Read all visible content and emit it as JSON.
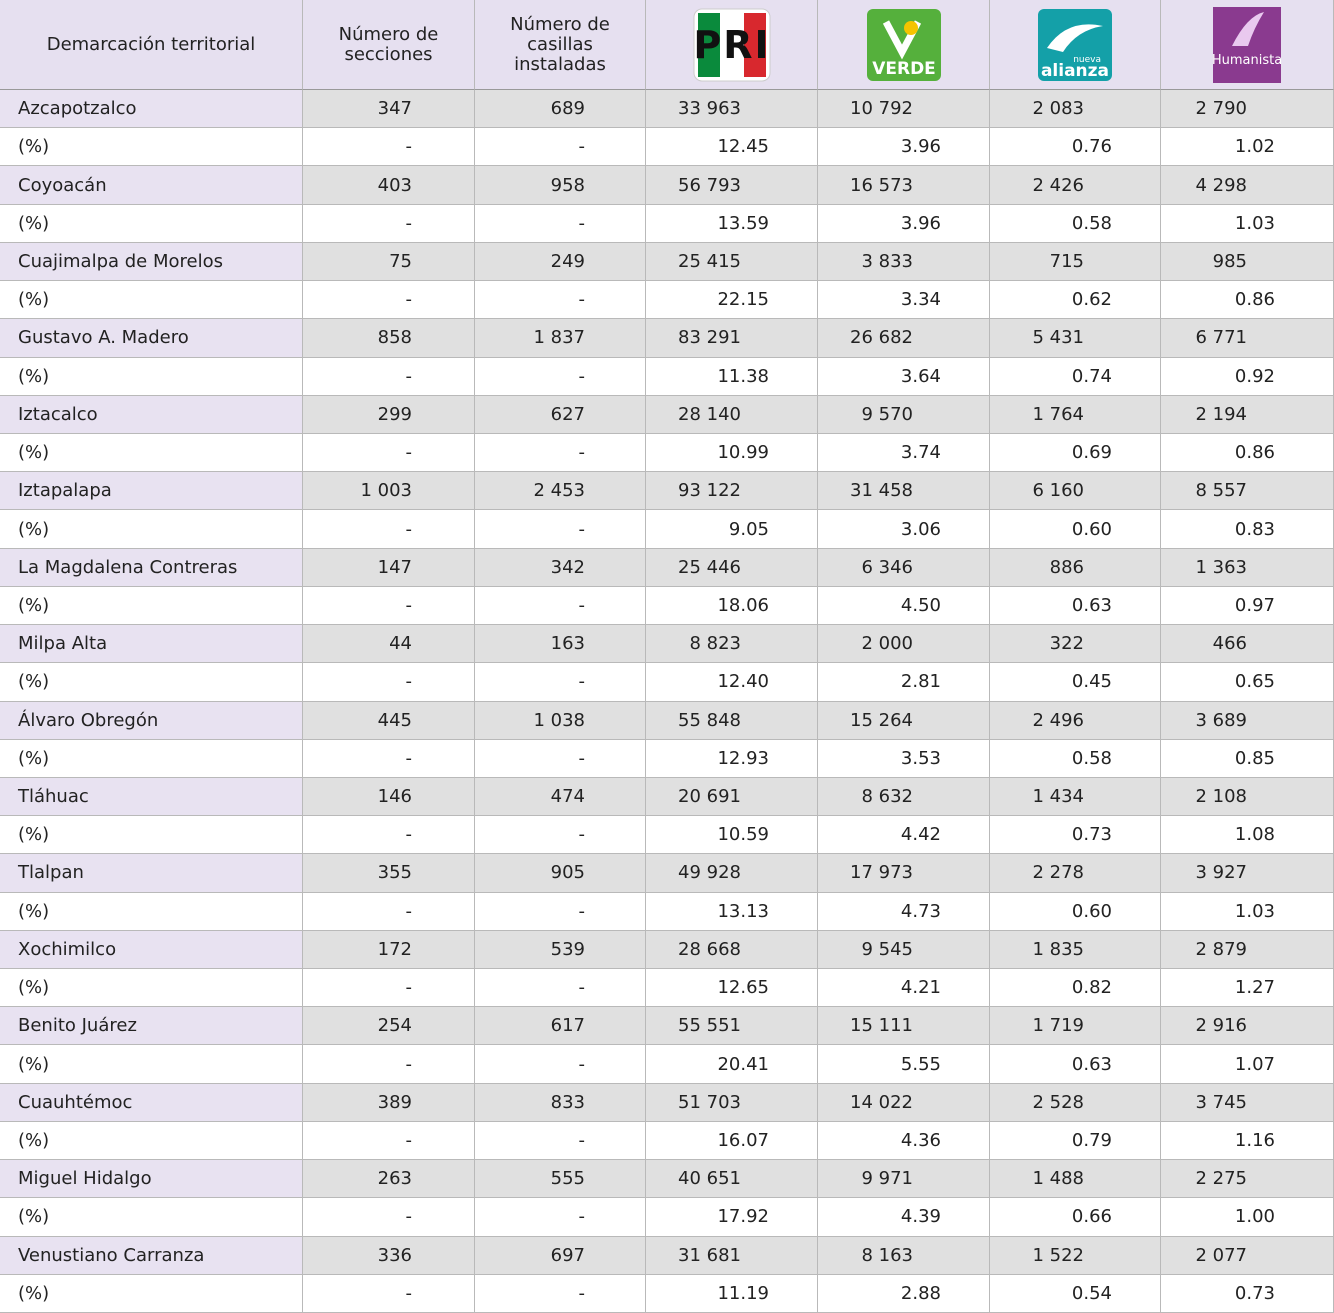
{
  "table": {
    "header": [
      "Demarcación territorial",
      "Número de secciones",
      "Número de casillas instaladas"
    ],
    "logos": [
      {
        "label": "PRI"
      },
      {
        "label": "VERDE"
      },
      {
        "label": "alianza",
        "tag": "nueva"
      },
      {
        "label": "Humanista"
      }
    ],
    "rows": [
      [
        "Azcapotzalco",
        "347",
        "689",
        "33 963",
        "10 792",
        "2 083",
        "2 790"
      ],
      [
        "(%)",
        "-",
        "-",
        "12.45",
        "3.96",
        "0.76",
        "1.02"
      ],
      [
        "Coyoacán",
        "403",
        "958",
        "56 793",
        "16 573",
        "2 426",
        "4 298"
      ],
      [
        "(%)",
        "-",
        "-",
        "13.59",
        "3.96",
        "0.58",
        "1.03"
      ],
      [
        "Cuajimalpa de Morelos",
        "75",
        "249",
        "25 415",
        "3 833",
        "715",
        "985"
      ],
      [
        "(%)",
        "-",
        "-",
        "22.15",
        "3.34",
        "0.62",
        "0.86"
      ],
      [
        "Gustavo A. Madero",
        "858",
        "1 837",
        "83 291",
        "26 682",
        "5 431",
        "6 771"
      ],
      [
        "(%)",
        "-",
        "-",
        "11.38",
        "3.64",
        "0.74",
        "0.92"
      ],
      [
        "Iztacalco",
        "299",
        "627",
        "28 140",
        "9 570",
        "1 764",
        "2 194"
      ],
      [
        "(%)",
        "-",
        "-",
        "10.99",
        "3.74",
        "0.69",
        "0.86"
      ],
      [
        "Iztapalapa",
        "1 003",
        "2 453",
        "93 122",
        "31 458",
        "6 160",
        "8 557"
      ],
      [
        "(%)",
        "-",
        "-",
        "9.05",
        "3.06",
        "0.60",
        "0.83"
      ],
      [
        "La Magdalena Contreras",
        "147",
        "342",
        "25 446",
        "6 346",
        "886",
        "1 363"
      ],
      [
        "(%)",
        "-",
        "-",
        "18.06",
        "4.50",
        "0.63",
        "0.97"
      ],
      [
        "Milpa Alta",
        "44",
        "163",
        "8 823",
        "2 000",
        "322",
        "466"
      ],
      [
        "(%)",
        "-",
        "-",
        "12.40",
        "2.81",
        "0.45",
        "0.65"
      ],
      [
        "Álvaro Obregón",
        "445",
        "1 038",
        "55 848",
        "15 264",
        "2 496",
        "3 689"
      ],
      [
        "(%)",
        "-",
        "-",
        "12.93",
        "3.53",
        "0.58",
        "0.85"
      ],
      [
        "Tláhuac",
        "146",
        "474",
        "20 691",
        "8 632",
        "1 434",
        "2 108"
      ],
      [
        "(%)",
        "-",
        "-",
        "10.59",
        "4.42",
        "0.73",
        "1.08"
      ],
      [
        "Tlalpan",
        "355",
        "905",
        "49 928",
        "17 973",
        "2 278",
        "3 927"
      ],
      [
        "(%)",
        "-",
        "-",
        "13.13",
        "4.73",
        "0.60",
        "1.03"
      ],
      [
        "Xochimilco",
        "172",
        "539",
        "28 668",
        "9 545",
        "1 835",
        "2 879"
      ],
      [
        "(%)",
        "-",
        "-",
        "12.65",
        "4.21",
        "0.82",
        "1.27"
      ],
      [
        "Benito Juárez",
        "254",
        "617",
        "55 551",
        "15 111",
        "1 719",
        "2 916"
      ],
      [
        "(%)",
        "-",
        "-",
        "20.41",
        "5.55",
        "0.63",
        "1.07"
      ],
      [
        "Cuauhtémoc",
        "389",
        "833",
        "51 703",
        "14 022",
        "2 528",
        "3 745"
      ],
      [
        "(%)",
        "-",
        "-",
        "16.07",
        "4.36",
        "0.79",
        "1.16"
      ],
      [
        "Miguel Hidalgo",
        "263",
        "555",
        "40 651",
        "9 971",
        "1 488",
        "2 275"
      ],
      [
        "(%)",
        "-",
        "-",
        "17.92",
        "4.39",
        "0.66",
        "1.00"
      ],
      [
        "Venustiano Carranza",
        "336",
        "697",
        "31 681",
        "8 163",
        "1 522",
        "2 077"
      ],
      [
        "(%)",
        "-",
        "-",
        "11.19",
        "2.88",
        "0.54",
        "0.73"
      ]
    ]
  }
}
